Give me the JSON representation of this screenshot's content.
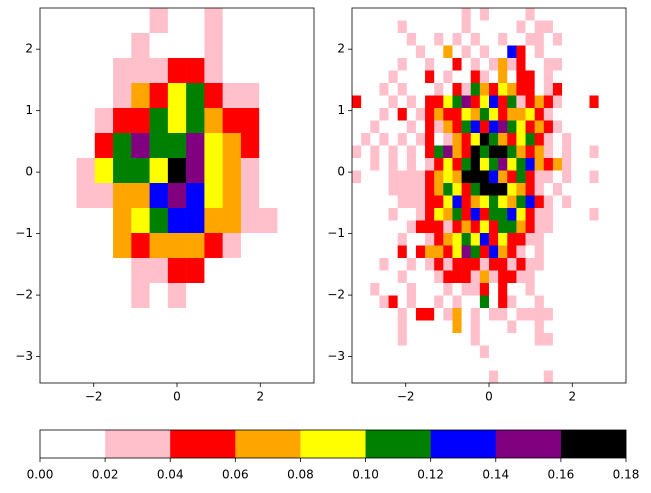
{
  "chart_data": [
    {
      "type": "heatmap",
      "xlim": [
        -3.29,
        3.29
      ],
      "ylim": [
        -3.43,
        2.67
      ],
      "xticks": [
        {
          "value": -2,
          "label": "−2"
        },
        0,
        2
      ],
      "yticks": [
        {
          "value": -3,
          "label": "−3"
        },
        {
          "value": -2,
          "label": "−2"
        },
        {
          "value": -1,
          "label": "−1"
        },
        0,
        1,
        2
      ],
      "values": [
        [
          0,
          0,
          0,
          0,
          0,
          0,
          0.03,
          0,
          0,
          0.03,
          0,
          0,
          0,
          0,
          0
        ],
        [
          0,
          0,
          0,
          0,
          0,
          0.03,
          0,
          0,
          0,
          0.03,
          0,
          0,
          0,
          0,
          0
        ],
        [
          0,
          0,
          0,
          0,
          0.03,
          0.03,
          0.03,
          0.05,
          0.05,
          0.03,
          0,
          0,
          0,
          0,
          0
        ],
        [
          0,
          0,
          0,
          0,
          0.03,
          0.07,
          0.05,
          0.09,
          0.11,
          0.05,
          0.03,
          0.03,
          0,
          0,
          0
        ],
        [
          0,
          0,
          0,
          0.03,
          0.05,
          0.05,
          0.11,
          0.09,
          0.11,
          0.07,
          0.05,
          0.05,
          0,
          0,
          0
        ],
        [
          0,
          0,
          0,
          0.05,
          0.11,
          0.15,
          0.11,
          0.11,
          0.15,
          0.09,
          0.07,
          0.05,
          0,
          0,
          0
        ],
        [
          0,
          0,
          0.03,
          0.09,
          0.11,
          0.11,
          0.09,
          0.17,
          0.15,
          0.09,
          0.07,
          0.03,
          0,
          0,
          0
        ],
        [
          0,
          0,
          0.03,
          0.03,
          0.07,
          0.07,
          0.13,
          0.15,
          0.13,
          0.09,
          0.07,
          0.03,
          0,
          0,
          0
        ],
        [
          0,
          0,
          0,
          0,
          0.07,
          0.09,
          0.11,
          0.13,
          0.13,
          0.07,
          0.07,
          0.03,
          0.03,
          0,
          0
        ],
        [
          0,
          0,
          0,
          0,
          0.07,
          0.05,
          0.07,
          0.07,
          0.07,
          0.05,
          0.03,
          0,
          0,
          0,
          0
        ],
        [
          0,
          0,
          0,
          0,
          0,
          0.03,
          0.03,
          0.05,
          0.05,
          0,
          0,
          0,
          0,
          0,
          0
        ],
        [
          0,
          0,
          0,
          0,
          0,
          0.03,
          0,
          0.03,
          0,
          0,
          0,
          0,
          0,
          0,
          0
        ],
        [
          0,
          0,
          0,
          0,
          0,
          0,
          0,
          0,
          0,
          0,
          0,
          0,
          0,
          0,
          0
        ],
        [
          0,
          0,
          0,
          0,
          0,
          0,
          0,
          0,
          0,
          0,
          0,
          0,
          0,
          0,
          0
        ],
        [
          0,
          0,
          0,
          0,
          0,
          0,
          0,
          0,
          0,
          0,
          0,
          0,
          0,
          0,
          0
        ]
      ]
    },
    {
      "type": "heatmap",
      "xlim": [
        -3.29,
        3.29
      ],
      "ylim": [
        -3.43,
        2.67
      ],
      "xticks": [
        {
          "value": -2,
          "label": "−2"
        },
        0,
        2
      ],
      "yticks": [
        {
          "value": -3,
          "label": "−3"
        },
        {
          "value": -2,
          "label": "−2"
        },
        {
          "value": -1,
          "label": "−1"
        },
        0,
        1,
        2
      ],
      "values": [
        [
          0,
          0,
          0,
          0,
          0,
          0,
          0,
          0,
          0,
          0,
          0,
          0,
          0.03,
          0,
          0.03,
          0,
          0,
          0,
          0,
          0.03,
          0,
          0,
          0,
          0,
          0,
          0,
          0,
          0,
          0,
          0
        ],
        [
          0,
          0,
          0,
          0,
          0,
          0.03,
          0,
          0,
          0,
          0,
          0,
          0,
          0.03,
          0,
          0,
          0,
          0,
          0,
          0.03,
          0,
          0.03,
          0.03,
          0,
          0,
          0,
          0,
          0,
          0,
          0,
          0
        ],
        [
          0,
          0,
          0,
          0,
          0,
          0,
          0.03,
          0,
          0,
          0.03,
          0,
          0.03,
          0,
          0.03,
          0,
          0,
          0.03,
          0,
          0,
          0.03,
          0.03,
          0,
          0.03,
          0,
          0,
          0,
          0,
          0,
          0,
          0
        ],
        [
          0,
          0,
          0,
          0,
          0,
          0,
          0,
          0.03,
          0,
          0,
          0.07,
          0,
          0.03,
          0,
          0.03,
          0,
          0,
          0.13,
          0.05,
          0,
          0.03,
          0,
          0,
          0,
          0,
          0,
          0,
          0,
          0,
          0
        ],
        [
          0,
          0,
          0,
          0,
          0,
          0.03,
          0,
          0,
          0.03,
          0,
          0,
          0.05,
          0,
          0.03,
          0,
          0.03,
          0.07,
          0.03,
          0.05,
          0,
          0,
          0.03,
          0.03,
          0,
          0,
          0,
          0,
          0,
          0,
          0
        ],
        [
          0,
          0,
          0,
          0,
          0.03,
          0,
          0,
          0,
          0.05,
          0,
          0.03,
          0,
          0,
          0.05,
          0.03,
          0,
          0.07,
          0,
          0.05,
          0.05,
          0,
          0.03,
          0,
          0,
          0,
          0,
          0,
          0,
          0,
          0
        ],
        [
          0,
          0,
          0,
          0.03,
          0,
          0.03,
          0,
          0,
          0,
          0.03,
          0,
          0.05,
          0.03,
          0.11,
          0.07,
          0.05,
          0.09,
          0.07,
          0.05,
          0.05,
          0,
          0.03,
          0.05,
          0,
          0,
          0,
          0,
          0,
          0,
          0
        ],
        [
          0.05,
          0,
          0,
          0,
          0.03,
          0,
          0.03,
          0,
          0.05,
          0.05,
          0.09,
          0.11,
          0.15,
          0.05,
          0.09,
          0.13,
          0.05,
          0.11,
          0.03,
          0.05,
          0.07,
          0.05,
          0.03,
          0,
          0,
          0,
          0.05,
          0,
          0,
          0
        ],
        [
          0,
          0,
          0,
          0.03,
          0,
          0.05,
          0,
          0.03,
          0.05,
          0.07,
          0.05,
          0.05,
          0.09,
          0.07,
          0.11,
          0.09,
          0.05,
          0.07,
          0.07,
          0.09,
          0.05,
          0.03,
          0,
          0,
          0,
          0,
          0,
          0,
          0,
          0
        ],
        [
          0,
          0,
          0.03,
          0,
          0,
          0,
          0.03,
          0,
          0.05,
          0.03,
          0.07,
          0.05,
          0.11,
          0.13,
          0.05,
          0.13,
          0.15,
          0.11,
          0.09,
          0.05,
          0.07,
          0.05,
          0.03,
          0,
          0,
          0,
          0,
          0,
          0,
          0
        ],
        [
          0,
          0.03,
          0,
          0.03,
          0,
          0.03,
          0,
          0.03,
          0.05,
          0,
          0.03,
          0.07,
          0.05,
          0.09,
          0.17,
          0.11,
          0.07,
          0.05,
          0.09,
          0.11,
          0.05,
          0.03,
          0,
          0.03,
          0,
          0,
          0,
          0,
          0,
          0
        ],
        [
          0.03,
          0,
          0.03,
          0,
          0.03,
          0,
          0.03,
          0,
          0.05,
          0.11,
          0.15,
          0.07,
          0.05,
          0.17,
          0.11,
          0.17,
          0.17,
          0.11,
          0.07,
          0.05,
          0.07,
          0.03,
          0,
          0.03,
          0,
          0,
          0.03,
          0,
          0,
          0
        ],
        [
          0,
          0,
          0.03,
          0,
          0.03,
          0,
          0.03,
          0,
          0.03,
          0.05,
          0.09,
          0.05,
          0.11,
          0.17,
          0.09,
          0.11,
          0.15,
          0.09,
          0.11,
          0.13,
          0.07,
          0.05,
          0.07,
          0.03,
          0,
          0,
          0,
          0,
          0,
          0
        ],
        [
          0.03,
          0,
          0,
          0,
          0.03,
          0.03,
          0.03,
          0.03,
          0.05,
          0.07,
          0.09,
          0.07,
          0.17,
          0.17,
          0.17,
          0.13,
          0.07,
          0.05,
          0.11,
          0.05,
          0.03,
          0.03,
          0,
          0.03,
          0,
          0,
          0.03,
          0,
          0,
          0
        ],
        [
          0,
          0,
          0,
          0,
          0.03,
          0.03,
          0.03,
          0.03,
          0.05,
          0.07,
          0.11,
          0.09,
          0.05,
          0.11,
          0.17,
          0.17,
          0.17,
          0.09,
          0.07,
          0.05,
          0.03,
          0,
          0.03,
          0,
          0,
          0,
          0,
          0,
          0,
          0
        ],
        [
          0,
          0,
          0,
          0,
          0,
          0.03,
          0.03,
          0.03,
          0.05,
          0.05,
          0.09,
          0.13,
          0.05,
          0.07,
          0.09,
          0.11,
          0.09,
          0.07,
          0.11,
          0.13,
          0.05,
          0.03,
          0,
          0.03,
          0,
          0,
          0,
          0,
          0,
          0
        ],
        [
          0,
          0,
          0,
          0,
          0.03,
          0,
          0,
          0.03,
          0.05,
          0.09,
          0.07,
          0.11,
          0.05,
          0.13,
          0.05,
          0.11,
          0.11,
          0.13,
          0.09,
          0.05,
          0.03,
          0.03,
          0,
          0,
          0,
          0,
          0.03,
          0,
          0,
          0
        ],
        [
          0,
          0,
          0,
          0,
          0,
          0,
          0.03,
          0.05,
          0.05,
          0.05,
          0.03,
          0.05,
          0.07,
          0.05,
          0.09,
          0.05,
          0.11,
          0.11,
          0.07,
          0.05,
          0.03,
          0.03,
          0,
          0,
          0,
          0,
          0,
          0,
          0,
          0
        ],
        [
          0,
          0,
          0,
          0,
          0,
          0.03,
          0,
          0,
          0.03,
          0.05,
          0.07,
          0.09,
          0.11,
          0.09,
          0.13,
          0.05,
          0.09,
          0.05,
          0.05,
          0.03,
          0.03,
          0,
          0,
          0,
          0,
          0,
          0,
          0,
          0,
          0
        ],
        [
          0,
          0,
          0,
          0,
          0,
          0.05,
          0,
          0.05,
          0.07,
          0.07,
          0.05,
          0.09,
          0.15,
          0.11,
          0.05,
          0.13,
          0.07,
          0.05,
          0.03,
          0,
          0.03,
          0,
          0,
          0,
          0,
          0,
          0,
          0,
          0,
          0
        ],
        [
          0,
          0,
          0,
          0.03,
          0,
          0,
          0.03,
          0,
          0.03,
          0.05,
          0.03,
          0.05,
          0.05,
          0.05,
          0.03,
          0.05,
          0.05,
          0.03,
          0.05,
          0.03,
          0.03,
          0,
          0,
          0,
          0,
          0,
          0,
          0,
          0,
          0
        ],
        [
          0,
          0,
          0,
          0,
          0,
          0.03,
          0,
          0,
          0,
          0.03,
          0.05,
          0.05,
          0.05,
          0.03,
          0.07,
          0.03,
          0.05,
          0.05,
          0.03,
          0.03,
          0,
          0,
          0,
          0,
          0,
          0,
          0,
          0,
          0,
          0
        ],
        [
          0,
          0,
          0.03,
          0,
          0,
          0,
          0.03,
          0,
          0,
          0,
          0.03,
          0,
          0.03,
          0.03,
          0.05,
          0,
          0.05,
          0,
          0,
          0.03,
          0,
          0,
          0,
          0,
          0,
          0,
          0,
          0,
          0,
          0
        ],
        [
          0,
          0,
          0,
          0.03,
          0.05,
          0,
          0.03,
          0,
          0,
          0.03,
          0,
          0.03,
          0,
          0,
          0.11,
          0,
          0.05,
          0.03,
          0,
          0,
          0.03,
          0,
          0,
          0,
          0,
          0,
          0,
          0,
          0,
          0
        ],
        [
          0,
          0,
          0,
          0,
          0,
          0.03,
          0,
          0.05,
          0.05,
          0,
          0.03,
          0.07,
          0,
          0.03,
          0,
          0.03,
          0.03,
          0,
          0.03,
          0.03,
          0.03,
          0.03,
          0,
          0,
          0,
          0,
          0,
          0,
          0,
          0
        ],
        [
          0,
          0,
          0,
          0,
          0,
          0.03,
          0,
          0,
          0,
          0,
          0,
          0.07,
          0,
          0.03,
          0,
          0,
          0,
          0.03,
          0,
          0,
          0.03,
          0,
          0,
          0,
          0,
          0,
          0,
          0,
          0,
          0
        ],
        [
          0,
          0,
          0,
          0,
          0,
          0.03,
          0,
          0,
          0,
          0,
          0,
          0,
          0,
          0.03,
          0,
          0,
          0,
          0,
          0,
          0,
          0.03,
          0.03,
          0,
          0,
          0,
          0,
          0,
          0,
          0,
          0
        ],
        [
          0,
          0,
          0,
          0,
          0,
          0,
          0,
          0,
          0,
          0,
          0,
          0,
          0,
          0,
          0.03,
          0,
          0,
          0,
          0,
          0,
          0,
          0,
          0,
          0,
          0,
          0,
          0,
          0,
          0,
          0
        ],
        [
          0,
          0,
          0,
          0,
          0,
          0,
          0,
          0,
          0,
          0,
          0,
          0,
          0,
          0,
          0,
          0,
          0,
          0,
          0,
          0,
          0,
          0,
          0,
          0,
          0,
          0,
          0,
          0,
          0,
          0
        ],
        [
          0,
          0,
          0,
          0,
          0,
          0,
          0,
          0,
          0,
          0,
          0,
          0,
          0,
          0,
          0,
          0.03,
          0,
          0,
          0,
          0,
          0,
          0.03,
          0,
          0,
          0,
          0,
          0,
          0,
          0,
          0
        ]
      ]
    },
    {
      "type": "colorbar",
      "colors": [
        "#ffffff",
        "#ffc0cb",
        "#ff0000",
        "#ffa500",
        "#ffff00",
        "#008000",
        "#0000ff",
        "#800080",
        "#000000"
      ],
      "xlim": [
        0,
        0.18
      ],
      "xticks": [
        {
          "value": 0,
          "label": "0.00"
        },
        {
          "value": 0.02,
          "label": "0.02"
        },
        {
          "value": 0.04,
          "label": "0.04"
        },
        {
          "value": 0.06,
          "label": "0.06"
        },
        {
          "value": 0.08,
          "label": "0.08"
        },
        {
          "value": 0.1,
          "label": "0.10"
        },
        {
          "value": 0.12,
          "label": "0.12"
        },
        {
          "value": 0.14,
          "label": "0.14"
        },
        {
          "value": 0.16,
          "label": "0.16"
        },
        {
          "value": 0.18,
          "label": "0.18"
        }
      ]
    }
  ]
}
